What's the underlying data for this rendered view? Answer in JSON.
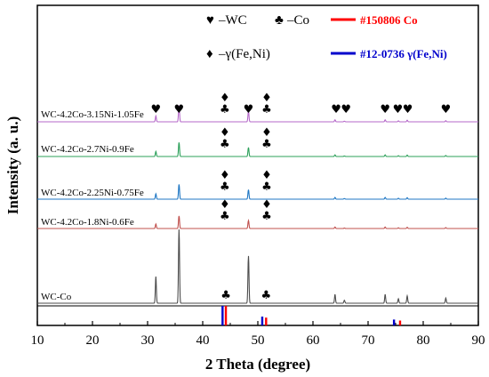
{
  "chart_data": {
    "type": "line",
    "xlabel": "2 Theta (degree)",
    "ylabel": "Intensity (a. u.)",
    "xlim": [
      10,
      90
    ],
    "xticks": [
      10,
      20,
      30,
      40,
      50,
      60,
      70,
      80,
      90
    ],
    "legend": {
      "wc_symbol": "♥",
      "wc_text": "–WC",
      "co_symbol": "♣",
      "co_text": "–Co",
      "gamma_symbol": "♦",
      "gamma_text": "–γ(Fe,Ni)",
      "ref_co_label": "#150806 Co",
      "ref_co_color": "#ff0000",
      "ref_gamma_label": "#12-0736 γ(Fe,Ni)",
      "ref_gamma_color": "#0000cc"
    },
    "peaks": {
      "positions": [
        31.5,
        35.7,
        48.3,
        64.0,
        65.7,
        73.1,
        75.5,
        77.1,
        84.1
      ],
      "relative_heights": [
        0.36,
        1.0,
        0.64,
        0.12,
        0.04,
        0.12,
        0.06,
        0.1,
        0.07
      ]
    },
    "series": [
      {
        "name": "WC-Co",
        "color": "#4d4d4d",
        "peak_scale": 1.0
      },
      {
        "name": "WC-4.2Co-1.8Ni-0.6Fe",
        "color": "#c0504d",
        "peak_scale": 0.17
      },
      {
        "name": "WC-4.2Co-2.25Ni-0.75Fe",
        "color": "#1f77c4",
        "peak_scale": 0.2
      },
      {
        "name": "WC-4.2Co-2.7Ni-0.9Fe",
        "color": "#2ca05a",
        "peak_scale": 0.19
      },
      {
        "name": "WC-4.2Co-3.15Ni-1.05Fe",
        "color": "#b569c9",
        "peak_scale": 0.22
      }
    ],
    "reference_bars": [
      {
        "ref": "#12-0736 γ(Fe,Ni)",
        "color": "#0000cc",
        "positions": [
          43.6,
          50.8,
          74.7
        ],
        "heights": [
          1.0,
          0.45,
          0.3
        ]
      },
      {
        "ref": "#150806 Co",
        "color": "#ff0000",
        "positions": [
          44.2,
          51.5,
          75.8
        ],
        "heights": [
          1.0,
          0.4,
          0.25
        ]
      }
    ],
    "annotations": [
      {
        "series": "WC-Co",
        "symbol": "♣",
        "x": 44.2
      },
      {
        "series": "WC-Co",
        "symbol": "♣",
        "x": 51.5
      },
      {
        "series": "WC-4.2Co-1.8Ni-0.6Fe",
        "symbol": "♦",
        "x": 44.0
      },
      {
        "series": "WC-4.2Co-1.8Ni-0.6Fe",
        "symbol": "♣",
        "x": 44.0
      },
      {
        "series": "WC-4.2Co-1.8Ni-0.6Fe",
        "symbol": "♦",
        "x": 51.6
      },
      {
        "series": "WC-4.2Co-1.8Ni-0.6Fe",
        "symbol": "♣",
        "x": 51.6
      },
      {
        "series": "WC-4.2Co-2.25Ni-0.75Fe",
        "symbol": "♦",
        "x": 44.0
      },
      {
        "series": "WC-4.2Co-2.25Ni-0.75Fe",
        "symbol": "♣",
        "x": 44.0
      },
      {
        "series": "WC-4.2Co-2.25Ni-0.75Fe",
        "symbol": "♦",
        "x": 51.6
      },
      {
        "series": "WC-4.2Co-2.25Ni-0.75Fe",
        "symbol": "♣",
        "x": 51.6
      },
      {
        "series": "WC-4.2Co-2.7Ni-0.9Fe",
        "symbol": "♦",
        "x": 44.0
      },
      {
        "series": "WC-4.2Co-2.7Ni-0.9Fe",
        "symbol": "♣",
        "x": 44.0
      },
      {
        "series": "WC-4.2Co-2.7Ni-0.9Fe",
        "symbol": "♦",
        "x": 51.6
      },
      {
        "series": "WC-4.2Co-2.7Ni-0.9Fe",
        "symbol": "♣",
        "x": 51.6
      },
      {
        "series": "WC-4.2Co-3.15Ni-1.05Fe",
        "symbol": "♥",
        "x": 31.5
      },
      {
        "series": "WC-4.2Co-3.15Ni-1.05Fe",
        "symbol": "♥",
        "x": 35.7
      },
      {
        "series": "WC-4.2Co-3.15Ni-1.05Fe",
        "symbol": "♦",
        "x": 44.0
      },
      {
        "series": "WC-4.2Co-3.15Ni-1.05Fe",
        "symbol": "♣",
        "x": 44.0
      },
      {
        "series": "WC-4.2Co-3.15Ni-1.05Fe",
        "symbol": "♥",
        "x": 48.3
      },
      {
        "series": "WC-4.2Co-3.15Ni-1.05Fe",
        "symbol": "♦",
        "x": 51.6
      },
      {
        "series": "WC-4.2Co-3.15Ni-1.05Fe",
        "symbol": "♣",
        "x": 51.6
      },
      {
        "series": "WC-4.2Co-3.15Ni-1.05Fe",
        "symbol": "♥",
        "x": 64.2
      },
      {
        "series": "WC-4.2Co-3.15Ni-1.05Fe",
        "symbol": "♥",
        "x": 66.0
      },
      {
        "series": "WC-4.2Co-3.15Ni-1.05Fe",
        "symbol": "♥",
        "x": 73.1
      },
      {
        "series": "WC-4.2Co-3.15Ni-1.05Fe",
        "symbol": "♥",
        "x": 75.4
      },
      {
        "series": "WC-4.2Co-3.15Ni-1.05Fe",
        "symbol": "♥",
        "x": 77.2
      },
      {
        "series": "WC-4.2Co-3.15Ni-1.05Fe",
        "symbol": "♥",
        "x": 84.1
      }
    ]
  }
}
